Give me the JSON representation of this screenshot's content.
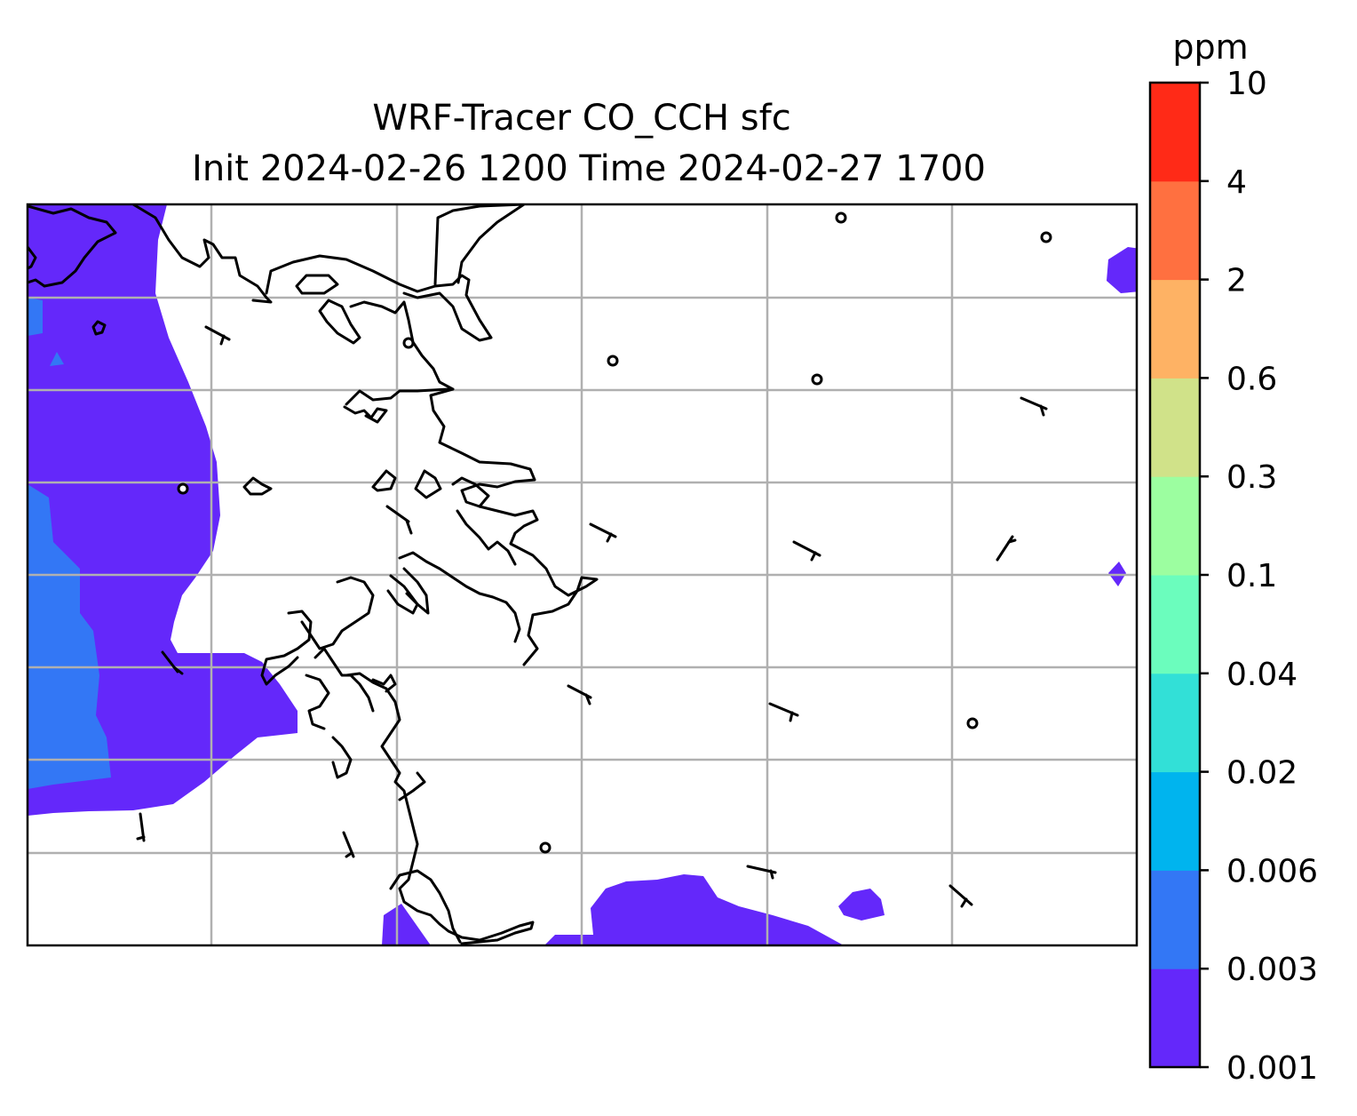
{
  "map": {
    "title_line1": "WRF-Tracer CO_CCH sfc",
    "title_line2": "Init 2024-02-26 1200 Time 2024-02-27 1700",
    "field": "CO_CCH",
    "level": "sfc",
    "gridlines": true,
    "colors": {
      "land_border": "#000000",
      "grid": "#b0b0b0",
      "background": "#ffffff"
    }
  },
  "colorbar": {
    "unit_label": "ppm",
    "orientation": "vertical",
    "placement": "right",
    "levels": [
      "0.001",
      "0.003",
      "0.006",
      "0.02",
      "0.04",
      "0.1",
      "0.3",
      "0.6",
      "2",
      "4",
      "10"
    ],
    "colors": [
      "#6428fa",
      "#3377f5",
      "#00b4ee",
      "#32e0d7",
      "#6bfdbd",
      "#9cfea0",
      "#d0e289",
      "#feb264",
      "#ff7040",
      "#ff2a17"
    ]
  }
}
